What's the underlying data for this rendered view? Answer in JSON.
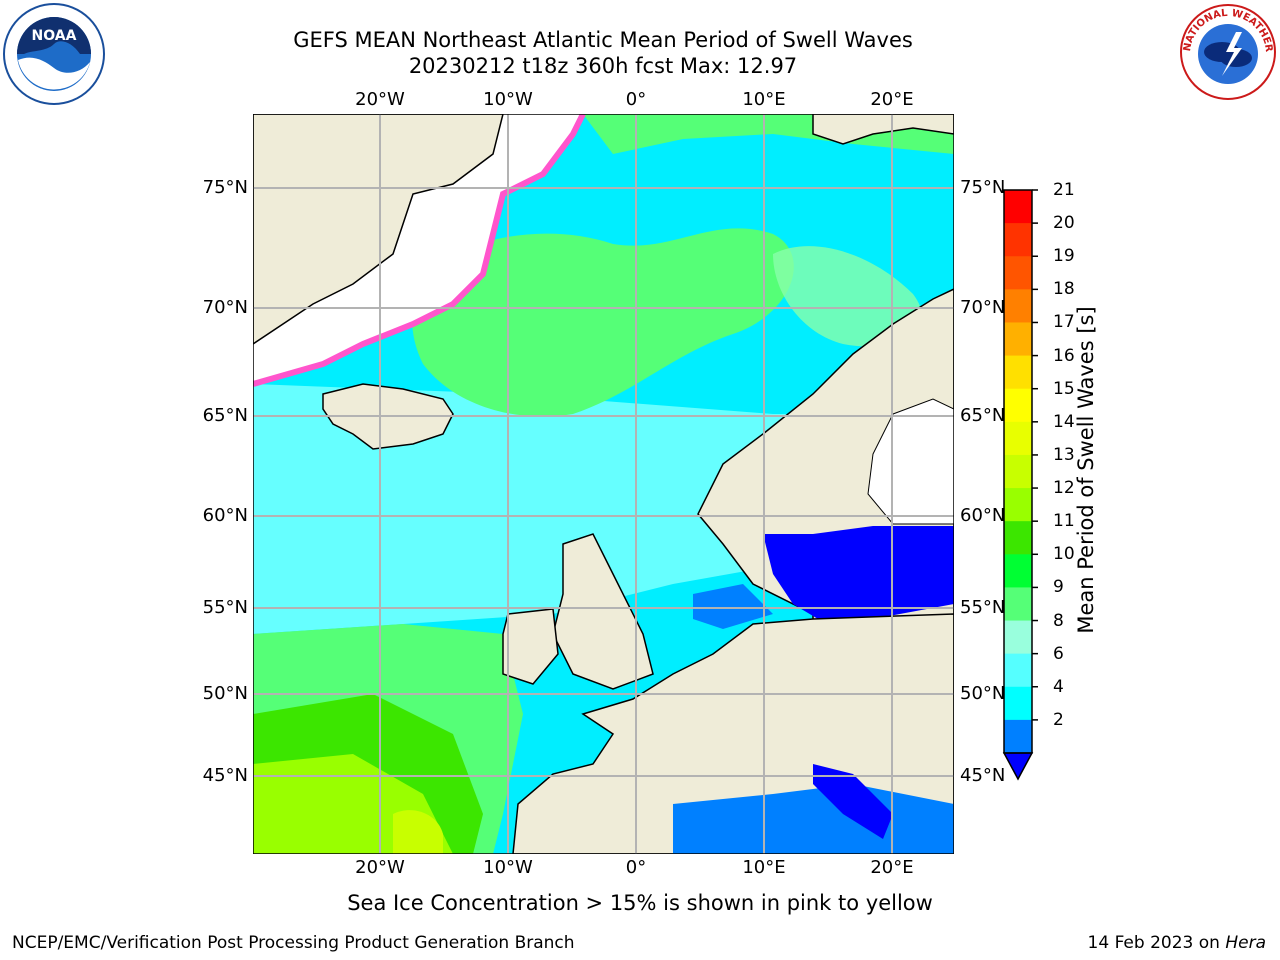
{
  "title": {
    "line1": "GEFS MEAN Northeast Atlantic Mean Period of Swell Waves",
    "line2": "20230212 t18z 360h fcst   Max: 12.97"
  },
  "axes": {
    "lon_ticks": [
      "20°W",
      "10°W",
      "0°",
      "10°E",
      "20°E"
    ],
    "lat_ticks": [
      "75°N",
      "70°N",
      "65°N",
      "60°N",
      "55°N",
      "50°N",
      "45°N"
    ]
  },
  "colorbar": {
    "label": "Mean Period of Swell Waves [s]",
    "ticks": [
      "21",
      "20",
      "19",
      "18",
      "17",
      "16",
      "15",
      "14",
      "13",
      "12",
      "11",
      "10",
      "9",
      "8",
      "6",
      "4",
      "2"
    ],
    "colors": [
      "#ff0000",
      "#ff3300",
      "#ff5500",
      "#ff8000",
      "#ffb000",
      "#ffe000",
      "#ffff00",
      "#e8ff00",
      "#c8ff00",
      "#99ff00",
      "#3ce600",
      "#00ff33",
      "#55ff77",
      "#99ffdd",
      "#55ffff",
      "#00ffff",
      "#0080ff"
    ],
    "under_color": "#0000ff"
  },
  "logos": {
    "noaa": "NOAA",
    "nws": "NATIONAL WEATHER SERVICE"
  },
  "footer": {
    "note": "Sea Ice Concentration > 15% is shown in pink to yellow",
    "credit": "NCEP/EMC/Verification Post Processing Product Generation Branch",
    "date": "14 Feb 2023 on",
    "machine": "Hera"
  }
}
